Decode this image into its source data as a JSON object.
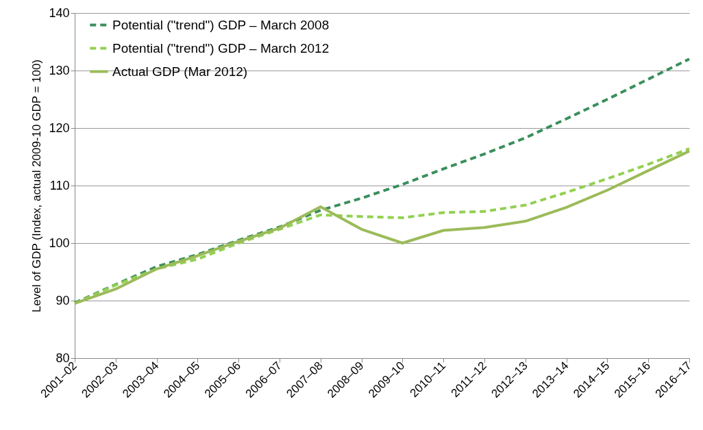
{
  "chart_data": {
    "type": "line",
    "ylabel": "Level of GDP (Index, actual 2009-10 GDP = 100)",
    "categories": [
      "2001–02",
      "2002–03",
      "2003–04",
      "2004–05",
      "2005–06",
      "2006–07",
      "2007–08",
      "2008–09",
      "2009–10",
      "2010–11",
      "2011–12",
      "2012–13",
      "2013–14",
      "2014–15",
      "2015–16",
      "2016–17"
    ],
    "series": [
      {
        "name": "Potential (\"trend\") GDP – March 2008",
        "color": "#3a8f5c",
        "line_style": "dashed",
        "values": [
          89.6,
          92.8,
          95.9,
          98.0,
          100.5,
          102.8,
          105.7,
          107.8,
          110.2,
          112.9,
          115.5,
          118.3,
          121.6,
          125.0,
          128.5,
          132.0
        ]
      },
      {
        "name": "Potential (\"trend\") GDP – March 2012",
        "color": "#92d050",
        "line_style": "dashed",
        "values": [
          89.5,
          92.7,
          95.5,
          97.2,
          100.0,
          102.4,
          104.9,
          104.6,
          104.4,
          105.3,
          105.5,
          106.6,
          108.8,
          111.2,
          113.7,
          116.4
        ]
      },
      {
        "name": "Actual GDP (Mar 2012)",
        "color": "#9bbb59",
        "line_style": "solid",
        "values": [
          89.5,
          92.0,
          95.5,
          97.8,
          100.3,
          102.6,
          106.3,
          102.4,
          100.0,
          102.2,
          102.7,
          103.8,
          106.2,
          109.2,
          112.6,
          116.0
        ]
      }
    ],
    "ylim": [
      80,
      140
    ],
    "yticks": [
      80,
      90,
      100,
      110,
      120,
      130,
      140
    ],
    "grid": "y",
    "legend": "top left",
    "marker": "none"
  }
}
